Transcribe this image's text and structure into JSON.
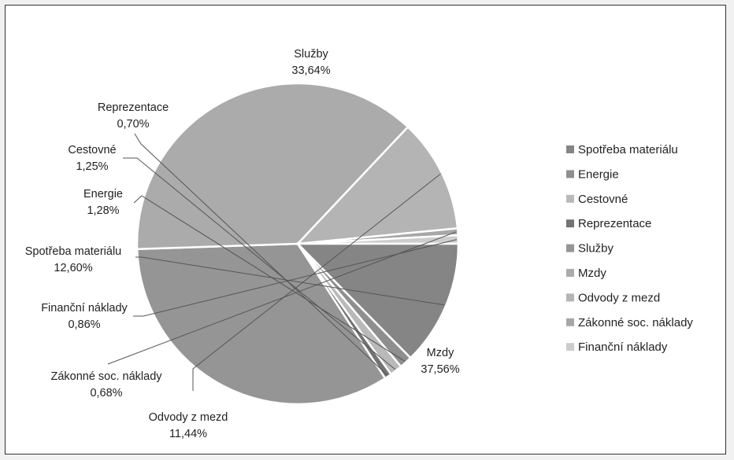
{
  "chart_data": {
    "type": "pie",
    "title": "",
    "legend_position": "right",
    "slices": [
      {
        "label": "Služby",
        "value": 33.64,
        "text": "33,64%",
        "color": "#959595"
      },
      {
        "label": "Mzdy",
        "value": 37.56,
        "text": "37,56%",
        "color": "#ababab"
      },
      {
        "label": "Odvody z mezd",
        "value": 11.44,
        "text": "11,44%",
        "color": "#b4b4b4"
      },
      {
        "label": "Zákonné soc. náklady",
        "value": 0.68,
        "text": "0,68%",
        "color": "#a7a7a7"
      },
      {
        "label": "Finanční náklady",
        "value": 0.86,
        "text": "0,86%",
        "color": "#cdcdcd"
      },
      {
        "label": "Spotřeba materiálu",
        "value": 12.6,
        "text": "12,60%",
        "color": "#858585"
      },
      {
        "label": "Energie",
        "value": 1.28,
        "text": "1,28%",
        "color": "#8f8f8f"
      },
      {
        "label": "Cestovné",
        "value": 1.25,
        "text": "1,25%",
        "color": "#b9b9b9"
      },
      {
        "label": "Reprezentace",
        "value": 0.7,
        "text": "0,70%",
        "color": "#737373"
      }
    ],
    "legend": [
      {
        "label": "Spotřeba materiálu",
        "color": "#858585"
      },
      {
        "label": "Energie",
        "color": "#8f8f8f"
      },
      {
        "label": "Cestovné",
        "color": "#b9b9b9"
      },
      {
        "label": "Reprezentace",
        "color": "#737373"
      },
      {
        "label": "Služby",
        "color": "#959595"
      },
      {
        "label": "Mzdy",
        "color": "#ababab"
      },
      {
        "label": "Odvody z mezd",
        "color": "#b4b4b4"
      },
      {
        "label": "Zákonné soc. náklady",
        "color": "#a7a7a7"
      },
      {
        "label": "Finanční náklady",
        "color": "#cdcdcd"
      }
    ]
  }
}
